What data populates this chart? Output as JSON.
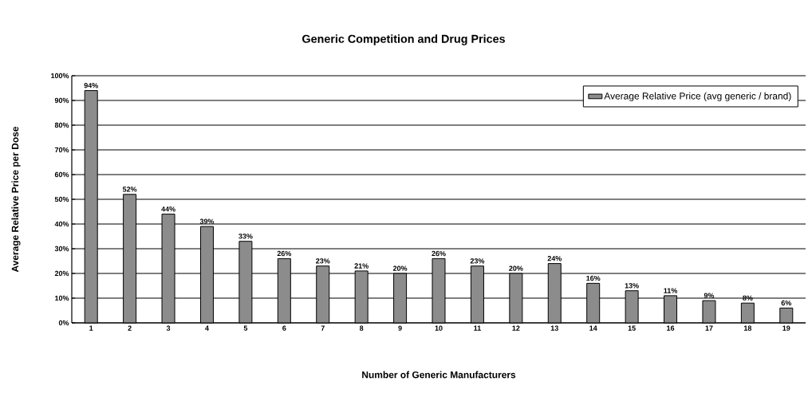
{
  "chart_data": {
    "type": "bar",
    "title": "Generic Competition and Drug Prices",
    "xlabel": "Number of Generic Manufacturers",
    "ylabel": "Average Relative Price per Dose",
    "categories": [
      "1",
      "2",
      "3",
      "4",
      "5",
      "6",
      "7",
      "8",
      "9",
      "10",
      "11",
      "12",
      "13",
      "14",
      "15",
      "16",
      "17",
      "18",
      "19"
    ],
    "series": [
      {
        "name": "Average Relative Price (avg generic / brand)",
        "color": "#8c8c8c",
        "values": [
          94,
          52,
          44,
          39,
          33,
          26,
          23,
          21,
          20,
          26,
          23,
          20,
          24,
          16,
          13,
          11,
          9,
          8,
          6
        ],
        "value_labels": [
          "94%",
          "52%",
          "44%",
          "39%",
          "33%",
          "26%",
          "23%",
          "21%",
          "20%",
          "26%",
          "23%",
          "20%",
          "24%",
          "16%",
          "13%",
          "11%",
          "9%",
          "8%",
          "6%"
        ]
      }
    ],
    "ylim": [
      0,
      100
    ],
    "yticks": [
      {
        "value": 0,
        "label": "0%"
      },
      {
        "value": 10,
        "label": "10%"
      },
      {
        "value": 20,
        "label": "20%"
      },
      {
        "value": 30,
        "label": "30%"
      },
      {
        "value": 40,
        "label": "40%"
      },
      {
        "value": 50,
        "label": "50%"
      },
      {
        "value": 60,
        "label": "60%"
      },
      {
        "value": 70,
        "label": "70%"
      },
      {
        "value": 80,
        "label": "80%"
      },
      {
        "value": 90,
        "label": "90%"
      },
      {
        "value": 100,
        "label": "100%"
      }
    ],
    "grid": "y",
    "legend": "top right"
  }
}
